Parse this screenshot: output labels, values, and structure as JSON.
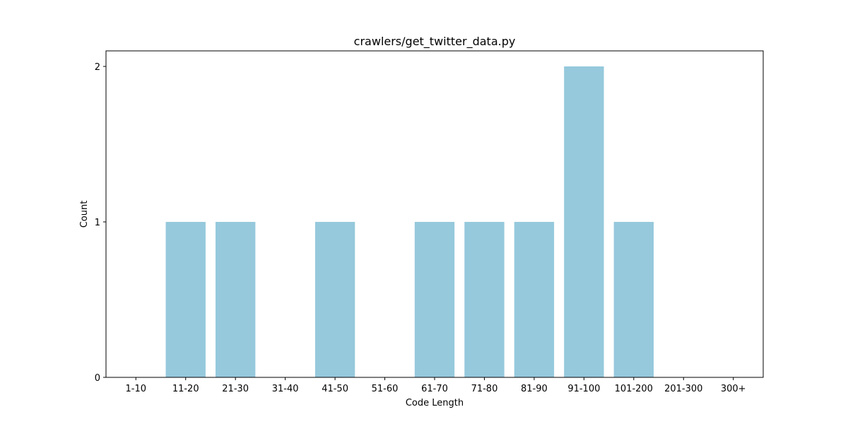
{
  "chart_data": {
    "type": "bar",
    "title": "crawlers/get_twitter_data.py",
    "xlabel": "Code Length",
    "ylabel": "Count",
    "categories": [
      "1-10",
      "11-20",
      "21-30",
      "31-40",
      "41-50",
      "51-60",
      "61-70",
      "71-80",
      "81-90",
      "91-100",
      "101-200",
      "201-300",
      "300+"
    ],
    "values": [
      0,
      1,
      1,
      0,
      1,
      0,
      1,
      1,
      1,
      2,
      1,
      0,
      0
    ],
    "ylim": [
      0,
      2.1
    ],
    "yticks": [
      0,
      1,
      2
    ],
    "grid": false,
    "bar_color": "#96c9dc"
  }
}
